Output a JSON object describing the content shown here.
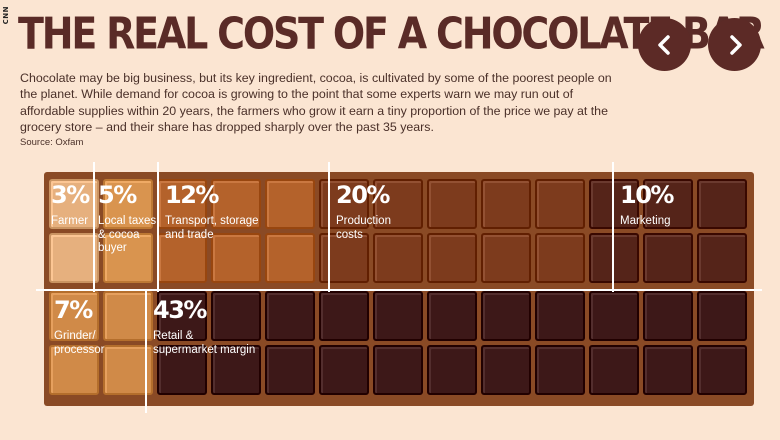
{
  "watermark": "CNN",
  "header": {
    "title": "THE REAL COST OF A CHOCOLATE BAR",
    "prev_icon": "chevron-left-icon",
    "next_icon": "chevron-right-icon"
  },
  "description": "Chocolate may be big business, but its key ingredient, cocoa, is cultivated by some of the poorest people on the planet. While demand for cocoa is growing to the point that some experts warn we may run out of affordable supplies within 20 years, the farmers who grow it earn a tiny proportion of the price we pay at the grocery store – and their share has dropped sharply over the past 35 years.",
  "source": "Source: Oxfam",
  "chart_data": {
    "type": "other",
    "segments": [
      {
        "percent": "3%",
        "value": 3,
        "label": "Farmer"
      },
      {
        "percent": "5%",
        "value": 5,
        "label": "Local taxes\n& cocoa\nbuyer"
      },
      {
        "percent": "12%",
        "value": 12,
        "label": "Transport, storage\nand trade"
      },
      {
        "percent": "20%",
        "value": 20,
        "label": "Production\ncosts"
      },
      {
        "percent": "10%",
        "value": 10,
        "label": "Marketing"
      },
      {
        "percent": "7%",
        "value": 7,
        "label": "Grinder/\nprocessor"
      },
      {
        "percent": "43%",
        "value": 43,
        "label": "Retail &\nsupermarket margin"
      }
    ],
    "colors": {
      "bar_background": "#8a4a25",
      "farmer": "#e6b07e",
      "local_taxes": "#d9944f",
      "transport": "#b4622b",
      "production": "#7d3b1d",
      "marketing": "#552419",
      "grinder": "#d08a48",
      "retail": "#3d1818",
      "divider": "#ffffff"
    }
  }
}
